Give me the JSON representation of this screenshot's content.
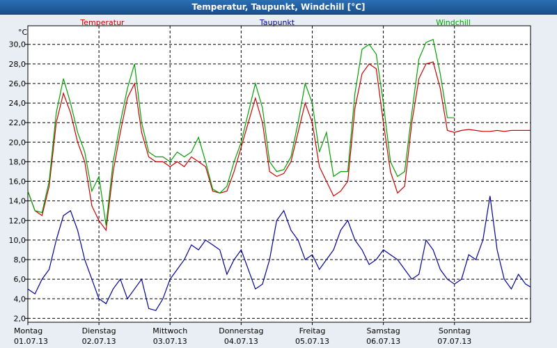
{
  "window": {
    "title": "Temperatur, Taupunkt, Windchill [°C]"
  },
  "chart_data": {
    "type": "line",
    "title": "Temperatur, Taupunkt, Windchill [°C]",
    "ylabel": "°C",
    "ylim": [
      1.6,
      31.9
    ],
    "yticks": [
      "2,0",
      "4,0",
      "6,0",
      "8,0",
      "10,0",
      "12,0",
      "14,0",
      "16,0",
      "18,0",
      "20,0",
      "22,0",
      "24,0",
      "26,0",
      "28,0",
      "30,0"
    ],
    "ytick_values": [
      2,
      4,
      6,
      8,
      10,
      12,
      14,
      16,
      18,
      20,
      22,
      24,
      26,
      28,
      30
    ],
    "xlim": [
      0,
      7.07
    ],
    "day_labels": [
      {
        "day": "Montag",
        "date": "01.07.13"
      },
      {
        "day": "Dienstag",
        "date": "02.07.13"
      },
      {
        "day": "Mittwoch",
        "date": "03.07.13"
      },
      {
        "day": "Donnerstag",
        "date": "04.07.13"
      },
      {
        "day": "Freitag",
        "date": "05.07.13"
      },
      {
        "day": "Samstag",
        "date": "06.07.13"
      },
      {
        "day": "Sonntag",
        "date": "07.07.13"
      }
    ],
    "colors": {
      "Temperatur": "#cc0000",
      "Taupunkt": "#000099",
      "Windchill": "#00a000",
      "grid": "#000000"
    },
    "series": [
      {
        "name": "Temperatur",
        "color": "#cc0000",
        "x": [
          0,
          0.1,
          0.2,
          0.3,
          0.4,
          0.5,
          0.6,
          0.7,
          0.8,
          0.9,
          1.0,
          1.1,
          1.2,
          1.3,
          1.4,
          1.5,
          1.6,
          1.7,
          1.8,
          1.9,
          2.0,
          2.1,
          2.2,
          2.3,
          2.4,
          2.5,
          2.6,
          2.7,
          2.8,
          2.9,
          3.0,
          3.1,
          3.2,
          3.3,
          3.4,
          3.5,
          3.6,
          3.7,
          3.8,
          3.9,
          4.0,
          4.1,
          4.2,
          4.3,
          4.4,
          4.5,
          4.6,
          4.7,
          4.8,
          4.9,
          5.0,
          5.1,
          5.2,
          5.3,
          5.4,
          5.5,
          5.6,
          5.7,
          5.8,
          5.9,
          6.0,
          6.1,
          6.2,
          6.3,
          6.4,
          6.5,
          6.6,
          6.7,
          6.8,
          6.9,
          7.0,
          7.07
        ],
        "values": [
          15,
          13,
          12.5,
          15.5,
          22,
          25,
          23,
          20,
          18,
          13.5,
          12,
          11,
          17,
          21,
          24.5,
          26,
          21,
          18.5,
          18,
          18,
          17.5,
          18,
          17.5,
          18.5,
          18,
          17.5,
          15,
          14.8,
          15,
          17,
          19.5,
          22,
          24.5,
          22,
          17,
          16.5,
          16.8,
          18,
          21,
          24,
          22,
          17.5,
          16,
          14.5,
          15,
          16,
          23.5,
          27,
          28,
          27.5,
          22,
          17,
          14.8,
          15.5,
          22,
          26.5,
          28,
          28.2,
          25.5,
          21.2,
          21,
          21.2,
          21.3,
          21.2,
          21.1,
          21.1,
          21.2,
          21.1,
          21.2,
          21.2,
          21.2,
          21.2
        ]
      },
      {
        "name": "Windchill",
        "color": "#00a000",
        "x": [
          0,
          0.1,
          0.2,
          0.3,
          0.4,
          0.5,
          0.6,
          0.7,
          0.8,
          0.9,
          1.0,
          1.1,
          1.2,
          1.3,
          1.4,
          1.5,
          1.6,
          1.7,
          1.8,
          1.9,
          2.0,
          2.1,
          2.2,
          2.3,
          2.4,
          2.5,
          2.6,
          2.7,
          2.8,
          2.9,
          3.0,
          3.1,
          3.2,
          3.3,
          3.4,
          3.5,
          3.6,
          3.7,
          3.8,
          3.9,
          4.0,
          4.1,
          4.2,
          4.3,
          4.4,
          4.5,
          4.6,
          4.7,
          4.8,
          4.9,
          5.0,
          5.1,
          5.2,
          5.3,
          5.4,
          5.5,
          5.6,
          5.7,
          5.8,
          5.9,
          6.0
        ],
        "values": [
          15,
          13,
          12.8,
          16,
          23,
          26.5,
          24,
          21,
          19,
          15,
          16.5,
          11.5,
          18,
          22,
          25.5,
          28,
          22,
          19,
          18.5,
          18.5,
          18,
          19,
          18.5,
          19,
          20.5,
          18,
          15.2,
          14.8,
          15.5,
          18,
          20,
          23,
          26,
          23.5,
          18,
          17,
          17.2,
          18.5,
          22,
          26,
          24,
          19,
          21,
          16.5,
          17,
          17,
          25,
          29.5,
          30,
          29,
          24,
          18,
          16.5,
          17,
          23,
          28.5,
          30.2,
          30.5,
          27,
          22.5,
          22.5
        ]
      },
      {
        "name": "Taupunkt",
        "color": "#000099",
        "x": [
          0,
          0.1,
          0.2,
          0.3,
          0.4,
          0.5,
          0.6,
          0.7,
          0.8,
          0.9,
          1.0,
          1.1,
          1.2,
          1.3,
          1.4,
          1.5,
          1.6,
          1.7,
          1.8,
          1.9,
          2.0,
          2.1,
          2.2,
          2.3,
          2.4,
          2.5,
          2.6,
          2.7,
          2.8,
          2.9,
          3.0,
          3.1,
          3.2,
          3.3,
          3.4,
          3.5,
          3.6,
          3.7,
          3.8,
          3.9,
          4.0,
          4.1,
          4.2,
          4.3,
          4.4,
          4.5,
          4.6,
          4.7,
          4.8,
          4.9,
          5.0,
          5.1,
          5.2,
          5.3,
          5.4,
          5.5,
          5.6,
          5.7,
          5.8,
          5.9,
          6.0,
          6.1,
          6.2,
          6.3,
          6.4,
          6.5,
          6.6,
          6.7,
          6.8,
          6.9,
          7.0,
          7.07
        ],
        "values": [
          5,
          4.5,
          6,
          7,
          10,
          12.5,
          13,
          11,
          8,
          6,
          4,
          3.5,
          5,
          6,
          4,
          5,
          6,
          3,
          2.8,
          4,
          6,
          7,
          8,
          9.5,
          9,
          10,
          9.5,
          9,
          6.5,
          8,
          9,
          7,
          5,
          5.5,
          8,
          12,
          13,
          11,
          10,
          8,
          8.5,
          7,
          8,
          9,
          11,
          12,
          10,
          9,
          7.5,
          8,
          9,
          8.5,
          8,
          7,
          6,
          6.5,
          10,
          9,
          7,
          6,
          5.5,
          6,
          8.5,
          8,
          10,
          14.5,
          9,
          6,
          5,
          6.5,
          5.5,
          5.2
        ]
      }
    ]
  }
}
